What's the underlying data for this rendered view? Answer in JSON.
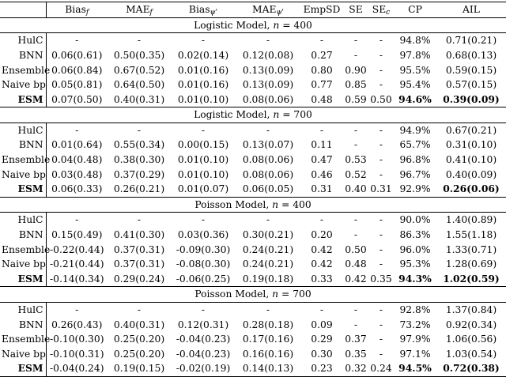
{
  "header": {
    "method": "",
    "bias_f": "Bias",
    "bias_f_sub": "f",
    "mae_f": "MAE",
    "mae_f_sub": "f",
    "bias_psi": "Bias",
    "bias_psi_sub": "ψ'",
    "mae_psi": "MAE",
    "mae_psi_sub": "ψ'",
    "empsd": "EmpSD",
    "se": "SE",
    "se_c": "SE",
    "se_c_sub": "c",
    "cp": "CP",
    "ail": "AIL"
  },
  "sections": [
    {
      "title": "Logistic Model, ",
      "n_label": "n",
      "n_value": " = 400",
      "rows": [
        {
          "method": "HulC",
          "bias_f": "-",
          "mae_f": "-",
          "bias_psi": "-",
          "mae_psi": "-",
          "empsd": "-",
          "se": "-",
          "se_c": "-",
          "cp": "94.8%",
          "ail": "0.71(0.21)"
        },
        {
          "method": "BNN",
          "bias_f": "0.06(0.61)",
          "mae_f": "0.50(0.35)",
          "bias_psi": "0.02(0.14)",
          "mae_psi": "0.12(0.08)",
          "empsd": "0.27",
          "se": "-",
          "se_c": "-",
          "cp": "97.8%",
          "ail": "0.68(0.13)"
        },
        {
          "method": "Ensemble",
          "bias_f": "0.06(0.84)",
          "mae_f": "0.67(0.52)",
          "bias_psi": "0.01(0.16)",
          "mae_psi": "0.13(0.09)",
          "empsd": "0.80",
          "se": "0.90",
          "se_c": "-",
          "cp": "95.5%",
          "ail": "0.59(0.15)"
        },
        {
          "method": "Naive bp",
          "bias_f": "0.05(0.81)",
          "mae_f": "0.64(0.50)",
          "bias_psi": "0.01(0.16)",
          "mae_psi": "0.13(0.09)",
          "empsd": "0.77",
          "se": "0.85",
          "se_c": "-",
          "cp": "95.4%",
          "ail": "0.57(0.15)"
        },
        {
          "method": "ESM",
          "bias_f": "0.07(0.50)",
          "mae_f": "0.40(0.31)",
          "bias_psi": "0.01(0.10)",
          "mae_psi": "0.08(0.06)",
          "empsd": "0.48",
          "se": "0.59",
          "se_c": "0.50",
          "cp": "94.6%",
          "ail": "0.39(0.09)",
          "bold": true
        }
      ]
    },
    {
      "title": "Logistic Model, ",
      "n_label": "n",
      "n_value": " = 700",
      "rows": [
        {
          "method": "HulC",
          "bias_f": "-",
          "mae_f": "-",
          "bias_psi": "-",
          "mae_psi": "-",
          "empsd": "-",
          "se": "-",
          "se_c": "-",
          "cp": "94.9%",
          "ail": "0.67(0.21)"
        },
        {
          "method": "BNN",
          "bias_f": "0.01(0.64)",
          "mae_f": "0.55(0.34)",
          "bias_psi": "0.00(0.15)",
          "mae_psi": "0.13(0.07)",
          "empsd": "0.11",
          "se": "-",
          "se_c": "-",
          "cp": "65.7%",
          "ail": "0.31(0.10)"
        },
        {
          "method": "Ensemble",
          "bias_f": "0.04(0.48)",
          "mae_f": "0.38(0.30)",
          "bias_psi": "0.01(0.10)",
          "mae_psi": "0.08(0.06)",
          "empsd": "0.47",
          "se": "0.53",
          "se_c": "-",
          "cp": "96.8%",
          "ail": "0.41(0.10)"
        },
        {
          "method": "Naive bp",
          "bias_f": "0.03(0.48)",
          "mae_f": "0.37(0.29)",
          "bias_psi": "0.01(0.10)",
          "mae_psi": "0.08(0.06)",
          "empsd": "0.46",
          "se": "0.52",
          "se_c": "-",
          "cp": "96.7%",
          "ail": "0.40(0.09)"
        },
        {
          "method": "ESM",
          "bias_f": "0.06(0.33)",
          "mae_f": "0.26(0.21)",
          "bias_psi": "0.01(0.07)",
          "mae_psi": "0.06(0.05)",
          "empsd": "0.31",
          "se": "0.40",
          "se_c": "0.31",
          "cp": "92.9%",
          "ail": "0.26(0.06)",
          "bold": true,
          "bold_cp": false
        }
      ]
    },
    {
      "title": "Poisson Model, ",
      "n_label": "n",
      "n_value": " = 400",
      "rows": [
        {
          "method": "HulC",
          "bias_f": "-",
          "mae_f": "-",
          "bias_psi": "-",
          "mae_psi": "-",
          "empsd": "-",
          "se": "-",
          "se_c": "-",
          "cp": "90.0%",
          "ail": "1.40(0.89)"
        },
        {
          "method": "BNN",
          "bias_f": "0.15(0.49)",
          "mae_f": "0.41(0.30)",
          "bias_psi": "0.03(0.36)",
          "mae_psi": "0.30(0.21)",
          "empsd": "0.20",
          "se": "-",
          "se_c": "-",
          "cp": "86.3%",
          "ail": "1.55(1.18)"
        },
        {
          "method": "Ensemble",
          "bias_f": "-0.22(0.44)",
          "mae_f": "0.37(0.31)",
          "bias_psi": "-0.09(0.30)",
          "mae_psi": "0.24(0.21)",
          "empsd": "0.42",
          "se": "0.50",
          "se_c": "-",
          "cp": "96.0%",
          "ail": "1.33(0.71)"
        },
        {
          "method": "Naive bp",
          "bias_f": "-0.21(0.44)",
          "mae_f": "0.37(0.31)",
          "bias_psi": "-0.08(0.30)",
          "mae_psi": "0.24(0.21)",
          "empsd": "0.42",
          "se": "0.48",
          "se_c": "-",
          "cp": "95.3%",
          "ail": "1.28(0.69)"
        },
        {
          "method": "ESM",
          "bias_f": "-0.14(0.34)",
          "mae_f": "0.29(0.24)",
          "bias_psi": "-0.06(0.25)",
          "mae_psi": "0.19(0.18)",
          "empsd": "0.33",
          "se": "0.42",
          "se_c": "0.35",
          "cp": "94.3%",
          "ail": "1.02(0.59)",
          "bold": true
        }
      ]
    },
    {
      "title": "Poisson Model, ",
      "n_label": "n",
      "n_value": " = 700",
      "rows": [
        {
          "method": "HulC",
          "bias_f": "-",
          "mae_f": "-",
          "bias_psi": "-",
          "mae_psi": "-",
          "empsd": "-",
          "se": "-",
          "se_c": "-",
          "cp": "92.8%",
          "ail": "1.37(0.84)"
        },
        {
          "method": "BNN",
          "bias_f": "0.26(0.43)",
          "mae_f": "0.40(0.31)",
          "bias_psi": "0.12(0.31)",
          "mae_psi": "0.28(0.18)",
          "empsd": "0.09",
          "se": "-",
          "se_c": "-",
          "cp": "73.2%",
          "ail": "0.92(0.34)"
        },
        {
          "method": "Ensemble",
          "bias_f": "-0.10(0.30)",
          "mae_f": "0.25(0.20)",
          "bias_psi": "-0.04(0.23)",
          "mae_psi": "0.17(0.16)",
          "empsd": "0.29",
          "se": "0.37",
          "se_c": "-",
          "cp": "97.9%",
          "ail": "1.06(0.56)"
        },
        {
          "method": "Naive bp",
          "bias_f": "-0.10(0.31)",
          "mae_f": "0.25(0.20)",
          "bias_psi": "-0.04(0.23)",
          "mae_psi": "0.16(0.16)",
          "empsd": "0.30",
          "se": "0.35",
          "se_c": "-",
          "cp": "97.1%",
          "ail": "1.03(0.54)"
        },
        {
          "method": "ESM",
          "bias_f": "-0.04(0.24)",
          "mae_f": "0.19(0.15)",
          "bias_psi": "-0.02(0.19)",
          "mae_psi": "0.14(0.13)",
          "empsd": "0.23",
          "se": "0.32",
          "se_c": "0.24",
          "cp": "94.5%",
          "ail": "0.72(0.38)",
          "bold": true
        }
      ]
    }
  ]
}
